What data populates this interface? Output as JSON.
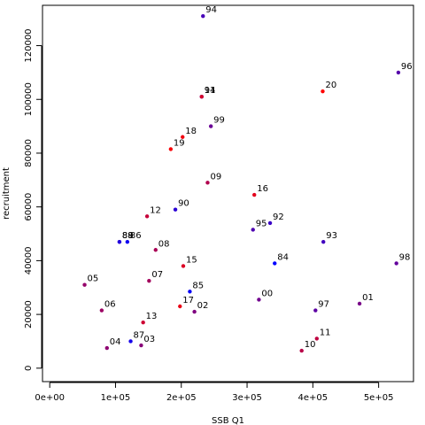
{
  "chart_data": {
    "type": "scatter",
    "title": "",
    "xlabel": "SSB Q1",
    "ylabel": "recruitment",
    "xlim": [
      -11000,
      553000
    ],
    "ylim": [
      -5000,
      135000
    ],
    "xticks": [
      0,
      100000,
      200000,
      300000,
      400000,
      500000
    ],
    "xtick_labels": [
      "0e+00",
      "1e+05",
      "2e+05",
      "3e+05",
      "4e+05",
      "5e+05"
    ],
    "yticks": [
      0,
      20000,
      40000,
      60000,
      80000,
      100000,
      120000
    ],
    "ytick_labels": [
      "0",
      "20000",
      "40000",
      "60000",
      "80000",
      "100000",
      "120000"
    ],
    "grid": false,
    "color_scale": {
      "start_color": "#0000ff",
      "end_color": "#ff0000",
      "start_year": "84",
      "end_year": "20"
    },
    "points": [
      {
        "label": "84",
        "x": 342000,
        "y": 39000
      },
      {
        "label": "85",
        "x": 213000,
        "y": 28500
      },
      {
        "label": "86",
        "x": 118000,
        "y": 47000
      },
      {
        "label": "87",
        "x": 123000,
        "y": 10000
      },
      {
        "label": "88",
        "x": 106000,
        "y": 47000
      },
      {
        "label": "89",
        "x": 106000,
        "y": 47000
      },
      {
        "label": "90",
        "x": 191000,
        "y": 59000
      },
      {
        "label": "91",
        "x": 231000,
        "y": 101000
      },
      {
        "label": "92",
        "x": 335000,
        "y": 54000
      },
      {
        "label": "93",
        "x": 416000,
        "y": 47000
      },
      {
        "label": "94",
        "x": 233000,
        "y": 131000
      },
      {
        "label": "95",
        "x": 309000,
        "y": 51500
      },
      {
        "label": "96",
        "x": 530000,
        "y": 110000
      },
      {
        "label": "97",
        "x": 404000,
        "y": 21500
      },
      {
        "label": "98",
        "x": 527000,
        "y": 39000
      },
      {
        "label": "99",
        "x": 245000,
        "y": 90000
      },
      {
        "label": "00",
        "x": 318000,
        "y": 25500
      },
      {
        "label": "01",
        "x": 471000,
        "y": 24000
      },
      {
        "label": "02",
        "x": 220000,
        "y": 21000
      },
      {
        "label": "03",
        "x": 139000,
        "y": 8500
      },
      {
        "label": "04",
        "x": 87000,
        "y": 7500
      },
      {
        "label": "05",
        "x": 53000,
        "y": 31000
      },
      {
        "label": "06",
        "x": 79000,
        "y": 21500
      },
      {
        "label": "07",
        "x": 151000,
        "y": 32500
      },
      {
        "label": "08",
        "x": 161000,
        "y": 44000
      },
      {
        "label": "09",
        "x": 240000,
        "y": 69000
      },
      {
        "label": "10",
        "x": 383000,
        "y": 6500
      },
      {
        "label": "11",
        "x": 406000,
        "y": 11000
      },
      {
        "label": "12",
        "x": 148000,
        "y": 56500
      },
      {
        "label": "13",
        "x": 142000,
        "y": 17000
      },
      {
        "label": "14",
        "x": 231000,
        "y": 101000
      },
      {
        "label": "15",
        "x": 203000,
        "y": 38000
      },
      {
        "label": "16",
        "x": 311000,
        "y": 64500
      },
      {
        "label": "17",
        "x": 198000,
        "y": 23000
      },
      {
        "label": "18",
        "x": 202000,
        "y": 86000
      },
      {
        "label": "19",
        "x": 184000,
        "y": 81500
      },
      {
        "label": "20",
        "x": 415000,
        "y": 103000
      }
    ]
  }
}
